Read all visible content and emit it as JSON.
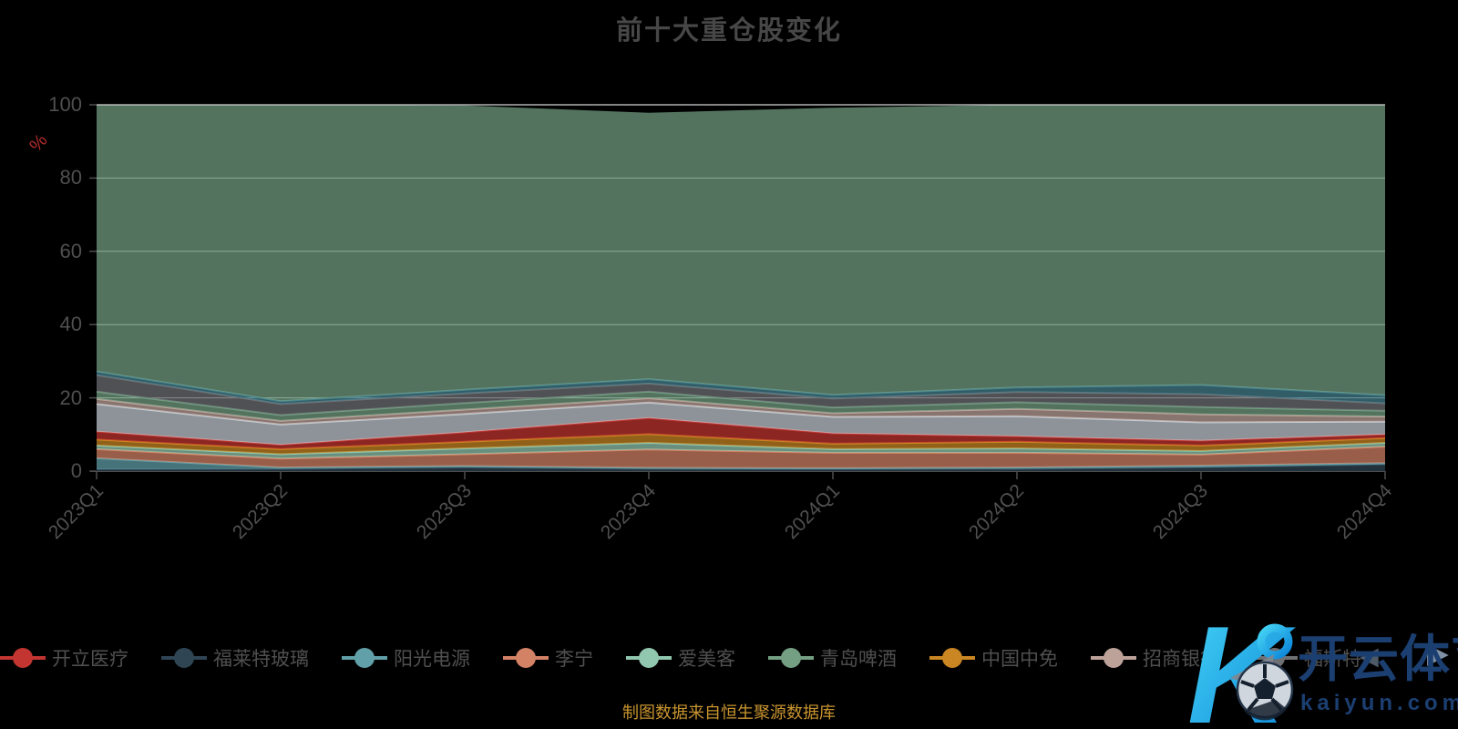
{
  "title": "前十大重仓股变化",
  "footer": {
    "text": "制图数据来自恒生聚源数据库",
    "color": "#c9952f"
  },
  "y_axis": {
    "name": "%",
    "name_color": "#b22b2b",
    "ticks": [
      0,
      20,
      40,
      60,
      80,
      100
    ]
  },
  "x_axis": {
    "labels": [
      "2023Q1",
      "2023Q2",
      "2023Q3",
      "2023Q4",
      "2024Q1",
      "2024Q2",
      "2024Q3",
      "2024Q4"
    ]
  },
  "legend": {
    "items": [
      {
        "label": "开立医疗",
        "color": "#c23531"
      },
      {
        "label": "福莱特玻璃",
        "color": "#2f4554"
      },
      {
        "label": "阳光电源",
        "color": "#61a0a8"
      },
      {
        "label": "李宁",
        "color": "#d48265"
      },
      {
        "label": "爱美客",
        "color": "#91c7ae"
      },
      {
        "label": "青岛啤酒",
        "color": "#749f83"
      },
      {
        "label": "中国中免",
        "color": "#ca8622"
      },
      {
        "label": "招商银行",
        "color": "#bda29a"
      },
      {
        "label": "福斯特",
        "color": "#6e7074"
      }
    ],
    "pager_prev": "◀",
    "pager_next": "▶"
  },
  "watermark": {
    "logo_letter": "K",
    "brand": "开云体育",
    "domain": "kaiyun.com",
    "accent_start": "#45d4f5",
    "accent_end": "#0b84d8",
    "text_color": "#1c3f72"
  },
  "chart_data": {
    "type": "area",
    "stacked": true,
    "unit": "%",
    "ylim": [
      0,
      100
    ],
    "grid": true,
    "legend_position": "bottom",
    "x": [
      "2023Q1",
      "2023Q2",
      "2023Q3",
      "2023Q4",
      "2024Q1",
      "2024Q2",
      "2024Q3",
      "2024Q4"
    ],
    "series": [
      {
        "name": "福莱特玻璃",
        "color": "#2f4554",
        "values": [
          0.5,
          0.6,
          1.0,
          0.6,
          0.5,
          0.6,
          1.0,
          1.8
        ]
      },
      {
        "name": "阳光电源",
        "color": "#61a0a8",
        "values": [
          3.0,
          0.4,
          0.4,
          0.3,
          0.3,
          0.4,
          0.5,
          0.4
        ]
      },
      {
        "name": "李宁",
        "color": "#d48265",
        "values": [
          2.5,
          2.4,
          3.2,
          5.0,
          4.2,
          4.0,
          3.0,
          4.5
        ]
      },
      {
        "name": "爱美客",
        "color": "#91c7ae",
        "values": [
          1.0,
          1.2,
          1.6,
          1.8,
          1.0,
          1.2,
          1.0,
          1.0
        ]
      },
      {
        "name": "中国中免",
        "color": "#ca8622",
        "values": [
          1.6,
          1.4,
          1.8,
          2.4,
          1.5,
          1.8,
          1.5,
          1.3
        ]
      },
      {
        "name": "开立医疗",
        "color": "#c23531",
        "values": [
          2.2,
          1.2,
          2.6,
          4.4,
          2.8,
          1.5,
          1.3,
          1.0
        ]
      },
      {
        "name": "",
        "color": "#c4ccd3",
        "values": [
          7.5,
          5.5,
          5.0,
          4.2,
          4.5,
          5.5,
          5.0,
          3.5
        ]
      },
      {
        "name": "招商银行",
        "color": "#bda29a",
        "values": [
          1.4,
          1.0,
          1.2,
          1.2,
          1.0,
          2.0,
          2.2,
          1.4
        ]
      },
      {
        "name": "青岛啤酒",
        "color": "#749f83",
        "values": [
          2.0,
          1.6,
          1.8,
          1.8,
          1.6,
          1.8,
          2.0,
          1.6
        ]
      },
      {
        "name": "福斯特",
        "color": "#6e7074",
        "values": [
          4.5,
          3.0,
          2.6,
          2.2,
          2.4,
          2.8,
          3.5,
          2.0
        ]
      },
      {
        "name": "",
        "color": "#45818e",
        "values": [
          1.0,
          0.8,
          1.0,
          1.2,
          1.0,
          1.2,
          2.5,
          2.2
        ]
      },
      {
        "name": "",
        "color": "#749f83",
        "values": [
          72.8,
          80.9,
          77.6,
          72.7,
          78.4,
          77.2,
          76.5,
          79.3
        ]
      }
    ]
  }
}
